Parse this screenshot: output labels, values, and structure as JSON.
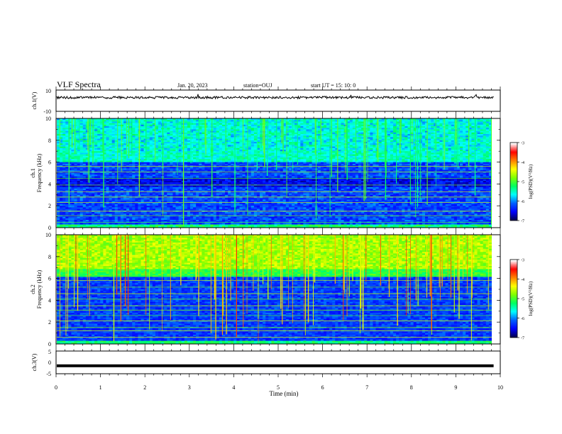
{
  "header": {
    "title": "VLF Spectra",
    "date": "Jan. 20, 2023",
    "station": "station=OUJ",
    "start": "start  UT =   15: 10: 0"
  },
  "chart_data": [
    {
      "type": "line",
      "name": "ch1-waveform",
      "ylabel": "ch.1(V)",
      "ylim": [
        -10,
        10
      ],
      "y_ticks": [
        "10",
        "-10"
      ],
      "signal": "noisy waveform centered near 3 V"
    },
    {
      "type": "heatmap",
      "name": "ch1-spectrogram",
      "ylabel": "ch.1\nFrequency (kHz)",
      "ylabel_top": "ch.1",
      "ylabel_bottom": "Frequency (kHz)",
      "ylim": [
        0,
        10
      ],
      "y_ticks": [
        "0",
        "2",
        "4",
        "6",
        "8",
        "10"
      ],
      "colorbar": {
        "label": "log(PSD)(V²/Hz)",
        "range": [
          -7,
          -3
        ],
        "ticks": [
          "-3",
          "-4",
          "-5",
          "-6",
          "-7"
        ]
      }
    },
    {
      "type": "heatmap",
      "name": "ch2-spectrogram",
      "ylabel": "ch.2\nFrequency (kHz)",
      "ylabel_top": "ch.2",
      "ylabel_bottom": "Frequency (kHz)",
      "ylim": [
        0,
        10
      ],
      "y_ticks": [
        "0",
        "2",
        "4",
        "6",
        "8",
        "10"
      ],
      "colorbar": {
        "label": "log(PSD)(V²/Hz)",
        "range": [
          -7,
          -3
        ],
        "ticks": [
          "-3",
          "-4",
          "-5",
          "-6",
          "-7"
        ]
      }
    },
    {
      "type": "line",
      "name": "ch3-waveform",
      "ylabel": "ch.3(V)",
      "ylim": [
        -5,
        5
      ],
      "y_ticks": [
        "5",
        "0",
        "-5"
      ],
      "signal": "flat line near -1 V"
    }
  ],
  "x_axis": {
    "label": "Time (min)",
    "xlim": [
      0,
      10
    ],
    "ticks": [
      "0",
      "1",
      "2",
      "3",
      "4",
      "5",
      "6",
      "7",
      "8",
      "9",
      "10"
    ],
    "data_end": 9.85
  },
  "colors": {
    "colormap": [
      "#000050",
      "#0000ff",
      "#0060ff",
      "#00ffff",
      "#00ff60",
      "#80ff00",
      "#ffff00",
      "#ff8000",
      "#ff0000",
      "#ffffff"
    ]
  }
}
